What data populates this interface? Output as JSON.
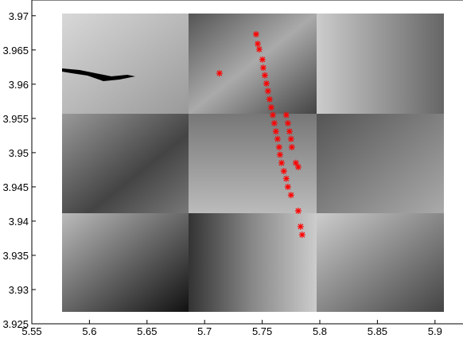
{
  "chart_data": {
    "type": "scatter",
    "marker": "*",
    "color": "#ff0000",
    "x": [
      5.7447,
      5.7461,
      5.7474,
      5.7502,
      5.7509,
      5.7523,
      5.7537,
      5.755,
      5.7564,
      5.7578,
      5.7592,
      5.7605,
      5.7619,
      5.7633,
      5.7647,
      5.7654,
      5.7668,
      5.7688,
      5.7709,
      5.7723,
      5.775,
      5.7813,
      5.7833,
      5.7847,
      5.7709,
      5.7723,
      5.7737,
      5.775,
      5.7757,
      5.7792,
      5.7813,
      5.7129
    ],
    "values": [
      3.9673,
      3.9659,
      3.9651,
      3.9636,
      3.9624,
      3.9613,
      3.9601,
      3.959,
      3.9578,
      3.9566,
      3.9555,
      3.9543,
      3.9531,
      3.952,
      3.9508,
      3.9497,
      3.9485,
      3.9473,
      3.9462,
      3.945,
      3.9438,
      3.9415,
      3.9392,
      3.938,
      3.9555,
      3.9543,
      3.9531,
      3.952,
      3.9508,
      3.9485,
      3.9479,
      3.9616
    ],
    "xlim": [
      5.55,
      5.925
    ],
    "ylim": [
      3.925,
      3.9723
    ],
    "xticks": [
      5.55,
      5.6,
      5.65,
      5.7,
      5.75,
      5.8,
      5.85,
      5.9
    ],
    "yticks": [
      3.925,
      3.93,
      3.935,
      3.94,
      3.945,
      3.95,
      3.955,
      3.96,
      3.965,
      3.97
    ]
  }
}
